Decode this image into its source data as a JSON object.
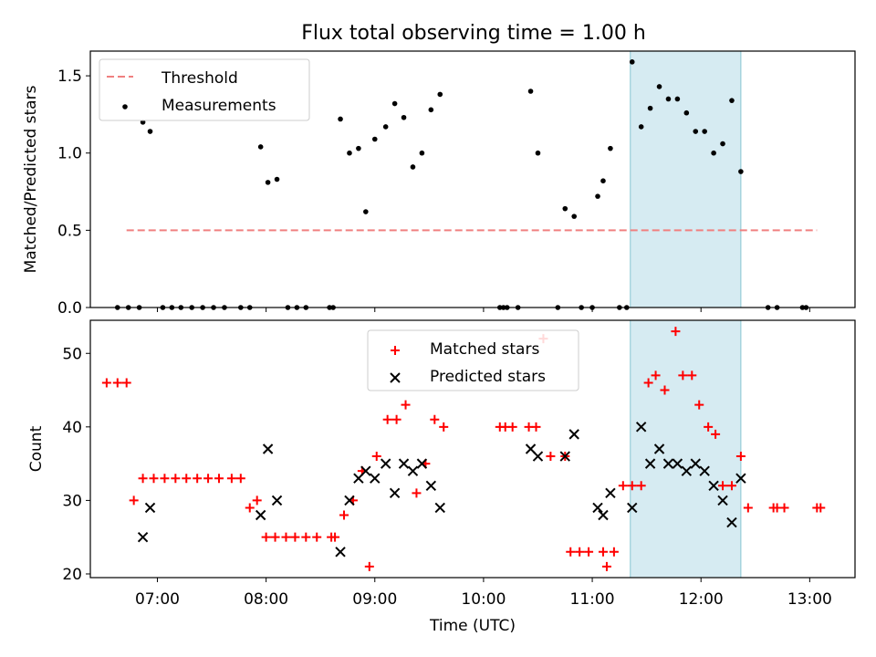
{
  "title": "Flux total observing time = 1.00 h",
  "chart_data": [
    {
      "type": "scatter",
      "panel": "top",
      "ylabel": "Matched/Predicted stars",
      "xlabel": "",
      "x_unit": "time_utc",
      "xlim": [
        "06:23",
        "13:25"
      ],
      "ylim": [
        0,
        1.66
      ],
      "yticks": [
        0.0,
        0.5,
        1.0,
        1.5
      ],
      "ytick_labels": [
        "0.0",
        "0.5",
        "1.0",
        "1.5"
      ],
      "xticks": [
        "07:00",
        "08:00",
        "09:00",
        "10:00",
        "11:00",
        "12:00",
        "13:00"
      ],
      "highlight_span": [
        "11:21",
        "12:22"
      ],
      "legend": {
        "placement": "top-left",
        "entries": [
          "Threshold",
          "Measurements"
        ]
      },
      "threshold": {
        "name": "Threshold",
        "y": 0.5,
        "x_start": "06:43",
        "x_end": "13:04",
        "color": "#f08080"
      },
      "series": [
        {
          "name": "Measurements",
          "color": "#000000",
          "points": [
            [
              "06:38",
              0
            ],
            [
              "06:44",
              0
            ],
            [
              "06:50",
              0
            ],
            [
              "06:52",
              1.2
            ],
            [
              "06:56",
              1.14
            ],
            [
              "07:03",
              0
            ],
            [
              "07:08",
              0
            ],
            [
              "07:13",
              0
            ],
            [
              "07:19",
              0
            ],
            [
              "07:25",
              0
            ],
            [
              "07:31",
              0
            ],
            [
              "07:37",
              0
            ],
            [
              "07:46",
              0
            ],
            [
              "07:51",
              0
            ],
            [
              "07:57",
              1.04
            ],
            [
              "08:01",
              0.81
            ],
            [
              "08:06",
              0.83
            ],
            [
              "08:12",
              0
            ],
            [
              "08:17",
              0
            ],
            [
              "08:22",
              0
            ],
            [
              "08:35",
              0
            ],
            [
              "08:37",
              0
            ],
            [
              "08:41",
              1.22
            ],
            [
              "08:46",
              1.0
            ],
            [
              "08:51",
              1.03
            ],
            [
              "08:55",
              0.62
            ],
            [
              "09:00",
              1.09
            ],
            [
              "09:06",
              1.17
            ],
            [
              "09:11",
              1.32
            ],
            [
              "09:16",
              1.23
            ],
            [
              "09:21",
              0.91
            ],
            [
              "09:26",
              1.0
            ],
            [
              "09:31",
              1.28
            ],
            [
              "09:36",
              1.38
            ],
            [
              "10:09",
              0
            ],
            [
              "10:11",
              0
            ],
            [
              "10:13",
              0
            ],
            [
              "10:19",
              0
            ],
            [
              "10:26",
              1.4
            ],
            [
              "10:30",
              1.0
            ],
            [
              "10:41",
              0
            ],
            [
              "10:45",
              0.64
            ],
            [
              "10:50",
              0.59
            ],
            [
              "10:54",
              0
            ],
            [
              "11:00",
              0
            ],
            [
              "11:03",
              0.72
            ],
            [
              "11:06",
              0.82
            ],
            [
              "11:10",
              1.03
            ],
            [
              "11:15",
              0
            ],
            [
              "11:19",
              0
            ],
            [
              "11:22",
              1.59
            ],
            [
              "11:27",
              1.17
            ],
            [
              "11:32",
              1.29
            ],
            [
              "11:37",
              1.43
            ],
            [
              "11:42",
              1.35
            ],
            [
              "11:47",
              1.35
            ],
            [
              "11:52",
              1.26
            ],
            [
              "11:57",
              1.14
            ],
            [
              "12:02",
              1.14
            ],
            [
              "12:07",
              1.0
            ],
            [
              "12:12",
              1.06
            ],
            [
              "12:17",
              1.34
            ],
            [
              "12:22",
              0.88
            ],
            [
              "12:37",
              0
            ],
            [
              "12:42",
              0
            ],
            [
              "12:56",
              0
            ],
            [
              "12:58",
              0
            ]
          ]
        }
      ]
    },
    {
      "type": "scatter",
      "panel": "bottom",
      "ylabel": "Count",
      "xlabel": "Time (UTC)",
      "x_unit": "time_utc",
      "xlim": [
        "06:23",
        "13:25"
      ],
      "ylim": [
        19.5,
        54.5
      ],
      "yticks": [
        20,
        30,
        40,
        50
      ],
      "ytick_labels": [
        "20",
        "30",
        "40",
        "50"
      ],
      "xticks": [
        "07:00",
        "08:00",
        "09:00",
        "10:00",
        "11:00",
        "12:00",
        "13:00"
      ],
      "xtick_labels": [
        "07:00",
        "08:00",
        "09:00",
        "10:00",
        "11:00",
        "12:00",
        "13:00"
      ],
      "highlight_span": [
        "11:21",
        "12:22"
      ],
      "legend": {
        "placement": "top-center",
        "entries": [
          "Matched stars",
          "Predicted stars"
        ]
      },
      "series": [
        {
          "name": "Matched stars",
          "marker": "plus",
          "color": "#ff0000",
          "points": [
            [
              "06:32",
              46
            ],
            [
              "06:38",
              46
            ],
            [
              "06:43",
              46
            ],
            [
              "06:47",
              30
            ],
            [
              "06:52",
              33
            ],
            [
              "06:58",
              33
            ],
            [
              "07:04",
              33
            ],
            [
              "07:10",
              33
            ],
            [
              "07:16",
              33
            ],
            [
              "07:22",
              33
            ],
            [
              "07:28",
              33
            ],
            [
              "07:34",
              33
            ],
            [
              "07:41",
              33
            ],
            [
              "07:46",
              33
            ],
            [
              "07:51",
              29
            ],
            [
              "07:55",
              30
            ],
            [
              "08:00",
              25
            ],
            [
              "08:05",
              25
            ],
            [
              "08:11",
              25
            ],
            [
              "08:16",
              25
            ],
            [
              "08:22",
              25
            ],
            [
              "08:28",
              25
            ],
            [
              "08:36",
              25
            ],
            [
              "08:38",
              25
            ],
            [
              "08:43",
              28
            ],
            [
              "08:48",
              30
            ],
            [
              "08:53",
              34
            ],
            [
              "08:57",
              21
            ],
            [
              "09:01",
              36
            ],
            [
              "09:07",
              41
            ],
            [
              "09:12",
              41
            ],
            [
              "09:17",
              43
            ],
            [
              "09:23",
              31
            ],
            [
              "09:28",
              35
            ],
            [
              "09:33",
              41
            ],
            [
              "09:38",
              40
            ],
            [
              "10:09",
              40
            ],
            [
              "10:12",
              40
            ],
            [
              "10:16",
              40
            ],
            [
              "10:25",
              40
            ],
            [
              "10:29",
              40
            ],
            [
              "10:33",
              52
            ],
            [
              "10:37",
              36
            ],
            [
              "10:45",
              36
            ],
            [
              "10:48",
              23
            ],
            [
              "10:53",
              23
            ],
            [
              "10:58",
              23
            ],
            [
              "11:06",
              23
            ],
            [
              "11:08",
              21
            ],
            [
              "11:12",
              23
            ],
            [
              "11:17",
              32
            ],
            [
              "11:22",
              32
            ],
            [
              "11:27",
              32
            ],
            [
              "11:31",
              46
            ],
            [
              "11:35",
              47
            ],
            [
              "11:40",
              45
            ],
            [
              "11:46",
              53
            ],
            [
              "11:50",
              47
            ],
            [
              "11:55",
              47
            ],
            [
              "11:59",
              43
            ],
            [
              "12:04",
              40
            ],
            [
              "12:08",
              39
            ],
            [
              "12:12",
              32
            ],
            [
              "12:17",
              32
            ],
            [
              "12:22",
              36
            ],
            [
              "12:26",
              29
            ],
            [
              "12:40",
              29
            ],
            [
              "12:42",
              29
            ],
            [
              "12:46",
              29
            ],
            [
              "13:04",
              29
            ],
            [
              "13:06",
              29
            ]
          ]
        },
        {
          "name": "Predicted stars",
          "marker": "x",
          "color": "#000000",
          "points": [
            [
              "06:52",
              25
            ],
            [
              "06:56",
              29
            ],
            [
              "07:57",
              28
            ],
            [
              "08:01",
              37
            ],
            [
              "08:06",
              30
            ],
            [
              "08:41",
              23
            ],
            [
              "08:46",
              30
            ],
            [
              "08:51",
              33
            ],
            [
              "08:55",
              34
            ],
            [
              "09:00",
              33
            ],
            [
              "09:06",
              35
            ],
            [
              "09:11",
              31
            ],
            [
              "09:16",
              35
            ],
            [
              "09:21",
              34
            ],
            [
              "09:26",
              35
            ],
            [
              "09:31",
              32
            ],
            [
              "09:36",
              29
            ],
            [
              "10:26",
              37
            ],
            [
              "10:30",
              36
            ],
            [
              "10:45",
              36
            ],
            [
              "10:50",
              39
            ],
            [
              "11:03",
              29
            ],
            [
              "11:06",
              28
            ],
            [
              "11:10",
              31
            ],
            [
              "11:22",
              29
            ],
            [
              "11:27",
              40
            ],
            [
              "11:32",
              35
            ],
            [
              "11:37",
              37
            ],
            [
              "11:42",
              35
            ],
            [
              "11:47",
              35
            ],
            [
              "11:52",
              34
            ],
            [
              "11:57",
              35
            ],
            [
              "12:02",
              34
            ],
            [
              "12:07",
              32
            ],
            [
              "12:12",
              30
            ],
            [
              "12:17",
              27
            ],
            [
              "12:22",
              33
            ]
          ]
        }
      ]
    }
  ]
}
